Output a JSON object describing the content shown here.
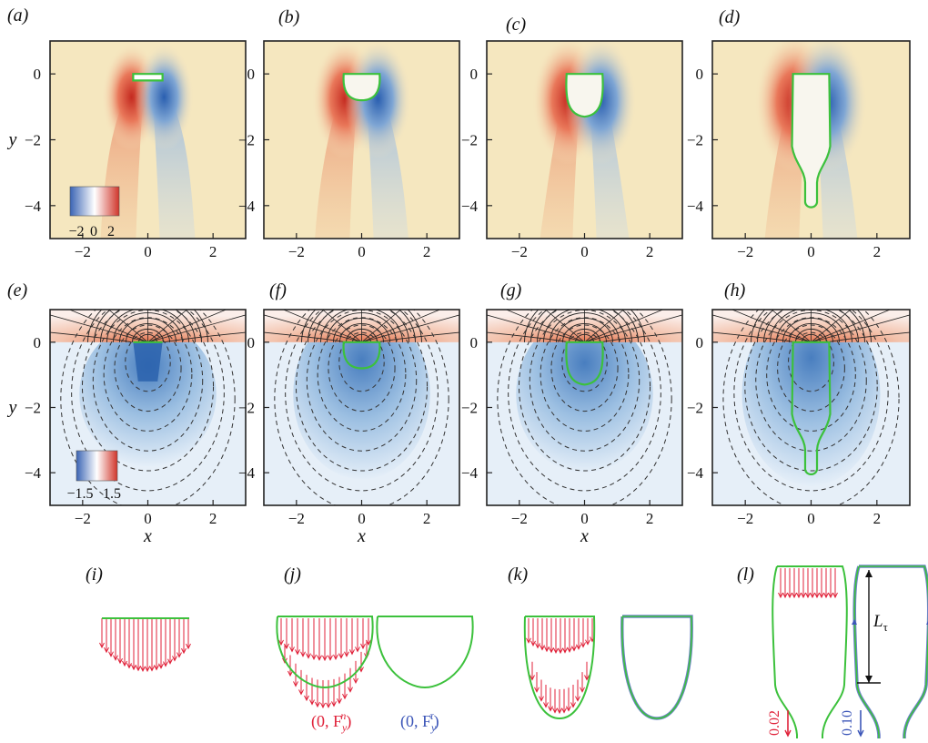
{
  "panel_labels": [
    "(a)",
    "(b)",
    "(c)",
    "(d)",
    "(e)",
    "(f)",
    "(g)",
    "(h)",
    "(i)",
    "(j)",
    "(k)",
    "(l)"
  ],
  "axis": {
    "ylabel": "y",
    "xlabel": "x",
    "xticks": [
      "−2",
      "0",
      "2"
    ],
    "yticks": [
      "0",
      "−2",
      "−4"
    ]
  },
  "colorbars": {
    "vorticity": {
      "ticks": [
        "−2",
        "0",
        "2"
      ]
    },
    "pressure": {
      "ticks": [
        "−1.5",
        "1.5"
      ]
    }
  },
  "force_labels": {
    "normal": "(0, F",
    "normal_sub": "y",
    "normal_sup": "n",
    "tangential": "(0, F",
    "tangential_sub": "y",
    "tangential_sup": "τ",
    "close": ")"
  },
  "length_label": "L",
  "length_sub": "τ",
  "scale_bars": {
    "normal": "0.02",
    "tangential": "0.10"
  },
  "colors": {
    "normal": "#e0223a",
    "tangential": "#3c56b8",
    "interface": "#3cc13c"
  }
}
